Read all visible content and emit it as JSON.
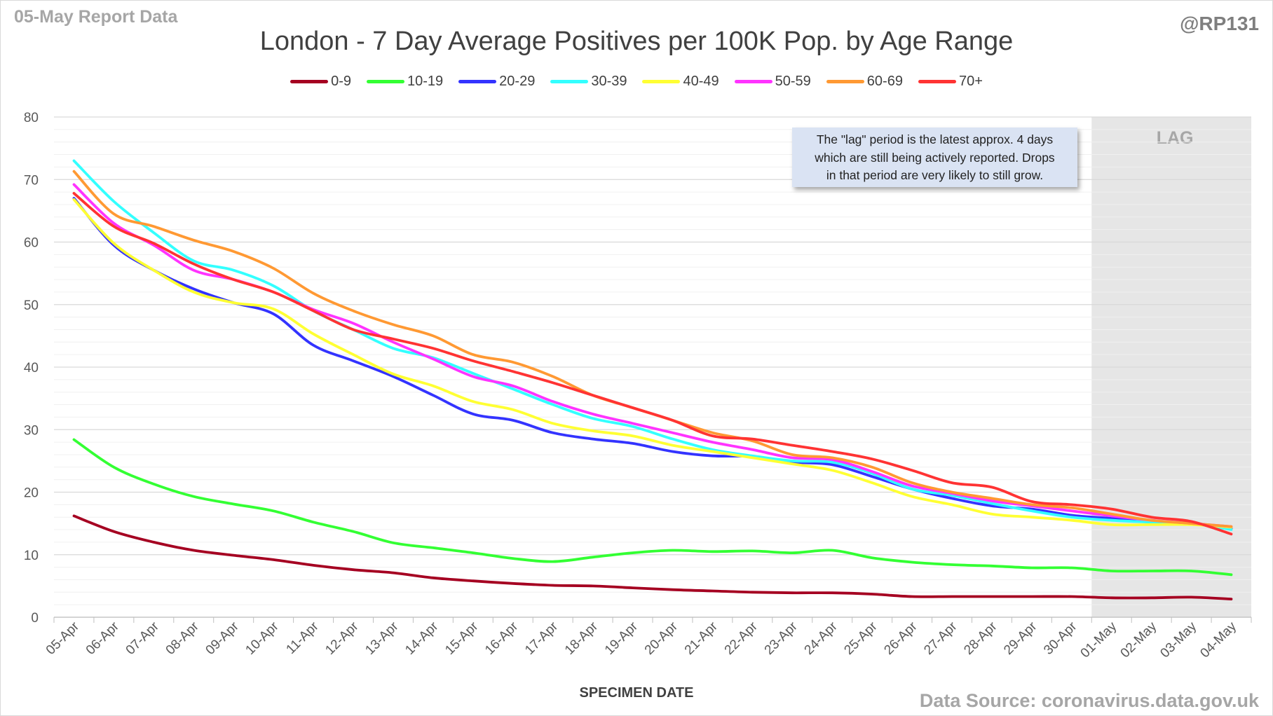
{
  "header": {
    "report_date": "05-May Report Data",
    "handle": "@RP131",
    "title": "London - 7 Day Average Positives per 100K Pop. by Age Range"
  },
  "footer": {
    "source": "Data Source: coronavirus.data.gov.uk"
  },
  "annotation": {
    "lines": [
      "The \"lag\" period is the latest approx. 4 days",
      "which are still being actively reported.  Drops",
      "in that period are very likely to still grow."
    ],
    "lag_label": "LAG"
  },
  "chart_data": {
    "type": "line",
    "title": "London - 7 Day Average Positives per 100K Pop. by Age Range",
    "xlabel": "SPECIMEN DATE",
    "ylabel": "",
    "ylim": [
      0,
      80
    ],
    "yticks": [
      0,
      10,
      20,
      30,
      40,
      50,
      60,
      70,
      80
    ],
    "grid": true,
    "legend_position": "top",
    "lag_region": {
      "from": "01-May",
      "to": "04-May"
    },
    "x": [
      "05-Apr",
      "06-Apr",
      "07-Apr",
      "08-Apr",
      "09-Apr",
      "10-Apr",
      "11-Apr",
      "12-Apr",
      "13-Apr",
      "14-Apr",
      "15-Apr",
      "16-Apr",
      "17-Apr",
      "18-Apr",
      "19-Apr",
      "20-Apr",
      "21-Apr",
      "22-Apr",
      "23-Apr",
      "24-Apr",
      "25-Apr",
      "26-Apr",
      "27-Apr",
      "28-Apr",
      "29-Apr",
      "30-Apr",
      "01-May",
      "02-May",
      "03-May",
      "04-May"
    ],
    "series": [
      {
        "name": "0-9",
        "color": "#a50021",
        "values": [
          16.2,
          13.7,
          12.0,
          10.7,
          9.9,
          9.2,
          8.3,
          7.6,
          7.1,
          6.3,
          5.8,
          5.4,
          5.1,
          5.0,
          4.7,
          4.4,
          4.2,
          4.0,
          3.9,
          3.9,
          3.7,
          3.3,
          3.3,
          3.3,
          3.3,
          3.3,
          3.1,
          3.1,
          3.2,
          2.9
        ]
      },
      {
        "name": "10-19",
        "color": "#33ff33",
        "values": [
          28.4,
          24.0,
          21.3,
          19.3,
          18.1,
          17.0,
          15.2,
          13.7,
          11.9,
          11.1,
          10.3,
          9.4,
          8.9,
          9.6,
          10.3,
          10.7,
          10.5,
          10.6,
          10.3,
          10.7,
          9.5,
          8.8,
          8.4,
          8.2,
          7.9,
          7.9,
          7.4,
          7.4,
          7.4,
          6.8
        ]
      },
      {
        "name": "20-29",
        "color": "#3333ff",
        "values": [
          67.0,
          59.5,
          55.5,
          52.5,
          50.3,
          48.5,
          43.5,
          41.0,
          38.5,
          35.5,
          32.5,
          31.5,
          29.5,
          28.5,
          27.8,
          26.5,
          25.8,
          25.7,
          24.8,
          24.4,
          22.5,
          20.5,
          19.0,
          17.8,
          17.3,
          16.3,
          15.8,
          15.2,
          15.0,
          14.2
        ]
      },
      {
        "name": "30-39",
        "color": "#33ffff",
        "values": [
          73.0,
          66.5,
          61.5,
          57.0,
          55.5,
          53.0,
          49.0,
          46.0,
          43.0,
          41.5,
          39.0,
          36.5,
          34.0,
          31.8,
          30.5,
          28.5,
          26.8,
          25.8,
          25.0,
          24.8,
          23.0,
          20.5,
          19.5,
          18.2,
          17.0,
          16.0,
          15.5,
          15.2,
          15.0,
          14.0
        ]
      },
      {
        "name": "40-49",
        "color": "#ffff33",
        "values": [
          66.8,
          59.8,
          55.5,
          52.0,
          50.3,
          49.3,
          45.3,
          42.0,
          38.9,
          37.0,
          34.5,
          33.2,
          31.0,
          29.8,
          29.0,
          27.5,
          26.5,
          25.5,
          24.5,
          23.5,
          21.5,
          19.3,
          18.0,
          16.5,
          16.0,
          15.5,
          14.8,
          14.8,
          14.8,
          14.4
        ]
      },
      {
        "name": "50-59",
        "color": "#ff33ff",
        "values": [
          69.2,
          63.0,
          59.5,
          55.5,
          54.0,
          52.0,
          49.2,
          47.0,
          44.0,
          41.3,
          38.5,
          37.0,
          34.5,
          32.5,
          31.0,
          29.5,
          28.0,
          26.8,
          25.5,
          25.2,
          23.3,
          21.0,
          19.8,
          18.6,
          17.8,
          17.0,
          16.2,
          15.5,
          15.0,
          14.5
        ]
      },
      {
        "name": "60-69",
        "color": "#ff9933",
        "values": [
          71.3,
          64.5,
          62.5,
          60.3,
          58.5,
          55.8,
          51.8,
          49.0,
          46.8,
          45.0,
          42.0,
          40.8,
          38.5,
          35.5,
          33.5,
          31.5,
          29.5,
          28.2,
          26.0,
          25.5,
          24.0,
          21.5,
          20.0,
          19.0,
          18.0,
          17.5,
          16.5,
          15.5,
          15.0,
          14.5
        ]
      },
      {
        "name": "70+",
        "color": "#ff3333",
        "values": [
          67.8,
          62.5,
          59.8,
          56.5,
          54.0,
          52.0,
          49.0,
          46.0,
          44.5,
          43.0,
          41.0,
          39.3,
          37.5,
          35.5,
          33.5,
          31.5,
          29.0,
          28.5,
          27.5,
          26.5,
          25.3,
          23.5,
          21.5,
          20.8,
          18.5,
          18.0,
          17.3,
          16.0,
          15.3,
          13.3
        ]
      }
    ]
  }
}
